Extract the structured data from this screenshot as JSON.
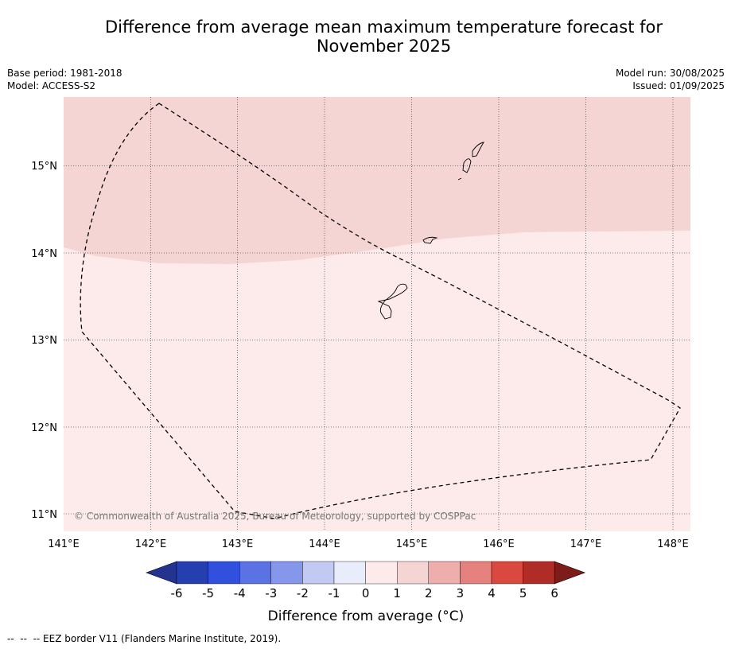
{
  "title_line1": "Difference from average mean maximum temperature forecast for",
  "title_line2": "November 2025",
  "base_period": "Base period: 1981-2018",
  "model": "Model: ACCESS-S2",
  "model_run": "Model run: 30/08/2025",
  "issued": "Issued: 01/09/2025",
  "copyright": "© Commonwealth of Australia 2025, Bureau of Meteorology, supported by COSPPac",
  "lat_labels": [
    "15°N",
    "14°N",
    "13°N",
    "12°N",
    "11°N"
  ],
  "lon_labels": [
    "141°E",
    "142°E",
    "143°E",
    "144°E",
    "145°E",
    "146°E",
    "147°E",
    "148°E"
  ],
  "legend": {
    "title": "Difference from average (°C)",
    "ticks": [
      "-6",
      "-5",
      "-4",
      "-3",
      "-2",
      "-1",
      "0",
      "1",
      "2",
      "3",
      "4",
      "5",
      "6"
    ],
    "colors": [
      "#23338f",
      "#263fb0",
      "#3050dd",
      "#5a72e4",
      "#8597ea",
      "#c2c9f3",
      "#e8ecfb",
      "#fcebea",
      "#f5d5d4",
      "#eeaeac",
      "#e5827e",
      "#d9493f",
      "#b02c26",
      "#7e1c1a"
    ]
  },
  "map": {
    "regions": [
      {
        "name": "1 to 2 °C",
        "color": "#f5d5d4"
      },
      {
        "name": "0 to 1 °C",
        "color": "#fcebea"
      }
    ]
  },
  "footnote": "--  --  -- EEZ border V11 (Flanders Marine Institute, 2019)."
}
